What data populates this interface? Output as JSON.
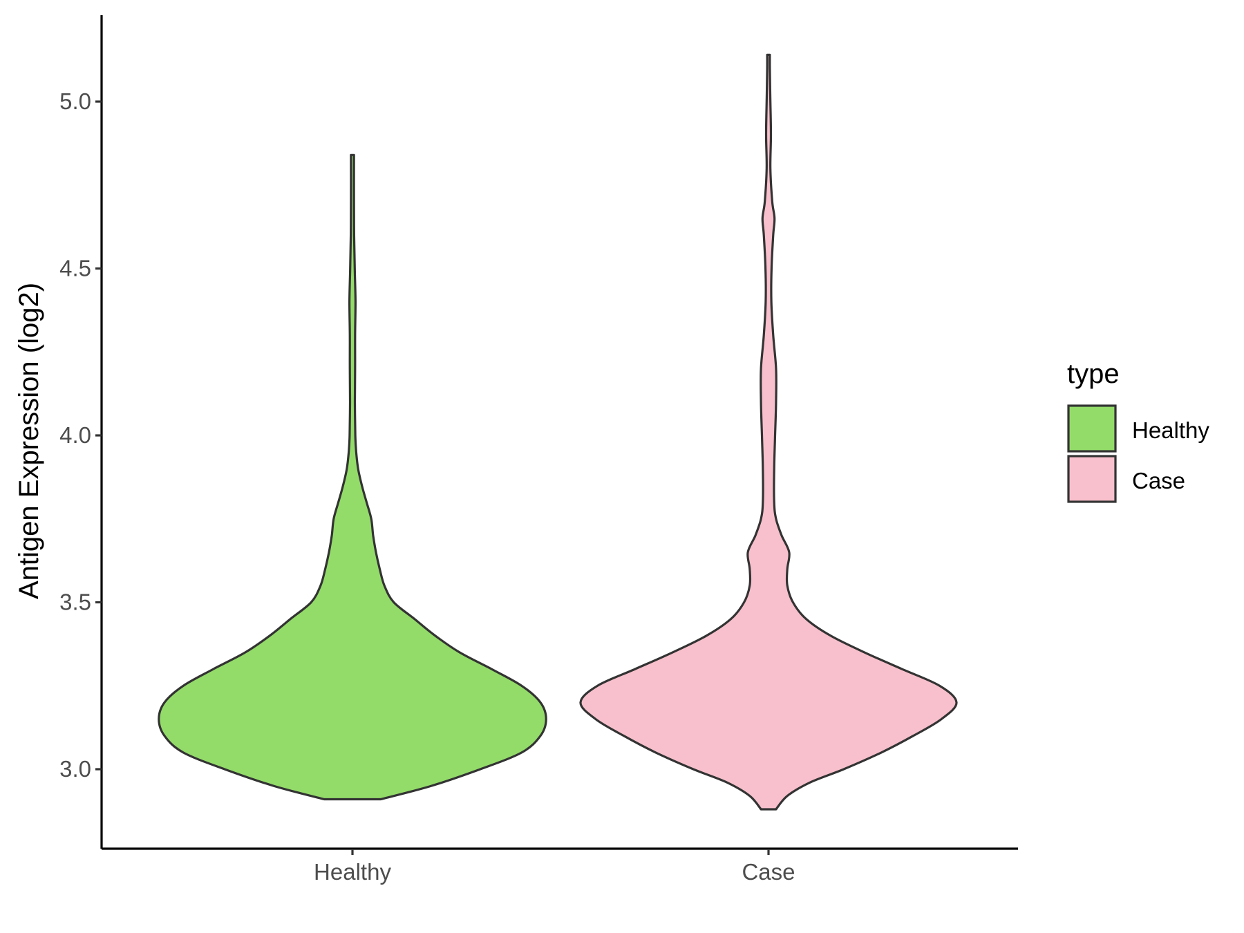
{
  "chart_data": {
    "type": "violin",
    "title": "",
    "xlabel": "",
    "ylabel": "Antigen Expression (log2)",
    "ylim": [
      2.76,
      5.25
    ],
    "yticks": [
      3.0,
      3.5,
      4.0,
      4.5,
      5.0
    ],
    "ytick_labels": [
      "3.0",
      "3.5",
      "4.0",
      "4.5",
      "5.0"
    ],
    "categories": [
      "Healthy",
      "Case"
    ],
    "legend": {
      "title": "type",
      "position": "right",
      "entries": [
        {
          "label": "Healthy",
          "color": "#93DC69"
        },
        {
          "label": "Case",
          "color": "#F8C0CC"
        }
      ]
    },
    "series": [
      {
        "name": "Healthy",
        "color": "#93DC69",
        "min": 2.91,
        "max": 4.84,
        "profile": [
          [
            2.91,
            0.15
          ],
          [
            2.95,
            0.42
          ],
          [
            3.0,
            0.68
          ],
          [
            3.05,
            0.9
          ],
          [
            3.1,
            1.0
          ],
          [
            3.15,
            1.03
          ],
          [
            3.2,
            1.0
          ],
          [
            3.25,
            0.9
          ],
          [
            3.3,
            0.74
          ],
          [
            3.35,
            0.57
          ],
          [
            3.4,
            0.44
          ],
          [
            3.45,
            0.33
          ],
          [
            3.5,
            0.22
          ],
          [
            3.55,
            0.17
          ],
          [
            3.6,
            0.145
          ],
          [
            3.65,
            0.125
          ],
          [
            3.7,
            0.11
          ],
          [
            3.75,
            0.1
          ],
          [
            3.8,
            0.075
          ],
          [
            3.85,
            0.05
          ],
          [
            3.9,
            0.03
          ],
          [
            3.95,
            0.02
          ],
          [
            4.0,
            0.015
          ],
          [
            4.1,
            0.013
          ],
          [
            4.2,
            0.014
          ],
          [
            4.3,
            0.014
          ],
          [
            4.4,
            0.016
          ],
          [
            4.5,
            0.012
          ],
          [
            4.6,
            0.009
          ],
          [
            4.7,
            0.008
          ],
          [
            4.84,
            0.008
          ]
        ]
      },
      {
        "name": "Case",
        "color": "#F8C0CC",
        "min": 2.88,
        "max": 5.14,
        "profile": [
          [
            2.88,
            0.04
          ],
          [
            2.92,
            0.1
          ],
          [
            2.96,
            0.22
          ],
          [
            3.0,
            0.4
          ],
          [
            3.05,
            0.6
          ],
          [
            3.1,
            0.77
          ],
          [
            3.15,
            0.92
          ],
          [
            3.2,
            1.0
          ],
          [
            3.25,
            0.91
          ],
          [
            3.3,
            0.71
          ],
          [
            3.35,
            0.51
          ],
          [
            3.4,
            0.33
          ],
          [
            3.45,
            0.2
          ],
          [
            3.5,
            0.13
          ],
          [
            3.55,
            0.1
          ],
          [
            3.6,
            0.1
          ],
          [
            3.65,
            0.11
          ],
          [
            3.7,
            0.07
          ],
          [
            3.75,
            0.04
          ],
          [
            3.8,
            0.03
          ],
          [
            3.9,
            0.03
          ],
          [
            4.0,
            0.035
          ],
          [
            4.1,
            0.04
          ],
          [
            4.2,
            0.04
          ],
          [
            4.3,
            0.025
          ],
          [
            4.4,
            0.015
          ],
          [
            4.5,
            0.016
          ],
          [
            4.6,
            0.025
          ],
          [
            4.65,
            0.032
          ],
          [
            4.7,
            0.02
          ],
          [
            4.8,
            0.01
          ],
          [
            4.9,
            0.013
          ],
          [
            5.0,
            0.01
          ],
          [
            5.1,
            0.007
          ],
          [
            5.14,
            0.007
          ]
        ]
      }
    ]
  }
}
